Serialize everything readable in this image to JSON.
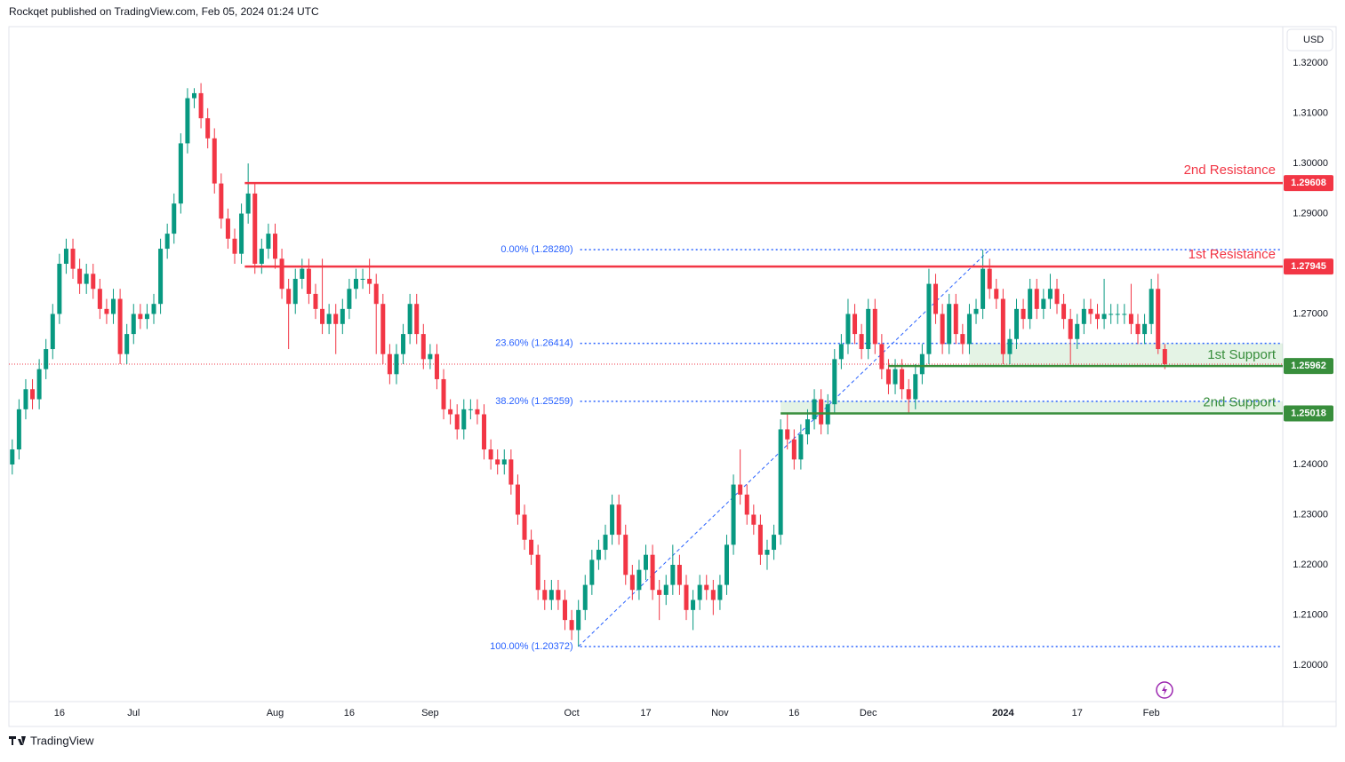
{
  "header": {
    "publisher": "Rockqet published on TradingView.com, Feb 05, 2024 01:24 UTC",
    "currency": "USD",
    "brand": "TradingView"
  },
  "chart_data": {
    "type": "candlestick",
    "up_color": "#089981",
    "down_color": "#f23645",
    "open": [
      1.24,
      1.243,
      1.251,
      1.255,
      1.253,
      1.259,
      1.263,
      1.27,
      1.28,
      1.283,
      1.279,
      1.276,
      1.278,
      1.275,
      1.271,
      1.27,
      1.273,
      1.262,
      1.266,
      1.27,
      1.269,
      1.27,
      1.272,
      1.283,
      1.286,
      1.292,
      1.304,
      1.313,
      1.314,
      1.309,
      1.305,
      1.296,
      1.289,
      1.285,
      1.282,
      1.29,
      1.294,
      1.28,
      1.283,
      1.286,
      1.281,
      1.275,
      1.272,
      1.277,
      1.279,
      1.274,
      1.271,
      1.268,
      1.27,
      1.268,
      1.271,
      1.275,
      1.277,
      1.277,
      1.276,
      1.272,
      1.262,
      1.258,
      1.262,
      1.266,
      1.272,
      1.266,
      1.261,
      1.262,
      1.257,
      1.251,
      1.25,
      1.247,
      1.251,
      1.251,
      1.25,
      1.243,
      1.241,
      1.24,
      1.241,
      1.236,
      1.23,
      1.225,
      1.222,
      1.215,
      1.213,
      1.215,
      1.213,
      1.209,
      1.207,
      1.211,
      1.216,
      1.221,
      1.223,
      1.226,
      1.232,
      1.226,
      1.218,
      1.215,
      1.219,
      1.222,
      1.215,
      1.214,
      1.216,
      1.22,
      1.216,
      1.211,
      1.213,
      1.216,
      1.215,
      1.213,
      1.216,
      1.224,
      1.236,
      1.234,
      1.23,
      1.228,
      1.222,
      1.223,
      1.226,
      1.247,
      1.245,
      1.241,
      1.246,
      1.249,
      1.253,
      1.248,
      1.252,
      1.261,
      1.264,
      1.27,
      1.266,
      1.263,
      1.271,
      1.264,
      1.259,
      1.256,
      1.259,
      1.255,
      1.253,
      1.258,
      1.262,
      1.276,
      1.27,
      1.264,
      1.272,
      1.266,
      1.264,
      1.27,
      1.271,
      1.279,
      1.275,
      1.273,
      1.262,
      1.265,
      1.271,
      1.269,
      1.275,
      1.271,
      1.273,
      1.275,
      1.272,
      1.269,
      1.265,
      1.268,
      1.271,
      1.27,
      1.269,
      1.27,
      1.27,
      1.27,
      1.27,
      1.268,
      1.266,
      1.268,
      1.275,
      1.263
    ],
    "high": [
      1.245,
      1.253,
      1.257,
      1.257,
      1.261,
      1.265,
      1.272,
      1.282,
      1.285,
      1.285,
      1.281,
      1.28,
      1.28,
      1.277,
      1.273,
      1.275,
      1.275,
      1.268,
      1.272,
      1.272,
      1.272,
      1.274,
      1.285,
      1.288,
      1.294,
      1.306,
      1.315,
      1.315,
      1.316,
      1.311,
      1.307,
      1.298,
      1.291,
      1.287,
      1.292,
      1.3,
      1.296,
      1.285,
      1.288,
      1.288,
      1.283,
      1.277,
      1.279,
      1.281,
      1.281,
      1.276,
      1.281,
      1.272,
      1.272,
      1.273,
      1.277,
      1.279,
      1.279,
      1.281,
      1.278,
      1.274,
      1.264,
      1.264,
      1.268,
      1.274,
      1.274,
      1.268,
      1.264,
      1.264,
      1.259,
      1.253,
      1.252,
      1.253,
      1.253,
      1.253,
      1.252,
      1.245,
      1.243,
      1.243,
      1.243,
      1.238,
      1.232,
      1.227,
      1.224,
      1.217,
      1.217,
      1.217,
      1.215,
      1.211,
      1.213,
      1.218,
      1.223,
      1.225,
      1.228,
      1.234,
      1.234,
      1.228,
      1.22,
      1.221,
      1.224,
      1.224,
      1.217,
      1.218,
      1.224,
      1.222,
      1.218,
      1.215,
      1.218,
      1.218,
      1.217,
      1.218,
      1.226,
      1.238,
      1.243,
      1.236,
      1.232,
      1.23,
      1.225,
      1.228,
      1.249,
      1.25,
      1.247,
      1.248,
      1.251,
      1.255,
      1.255,
      1.254,
      1.263,
      1.266,
      1.273,
      1.272,
      1.268,
      1.273,
      1.273,
      1.266,
      1.261,
      1.261,
      1.261,
      1.257,
      1.26,
      1.264,
      1.279,
      1.278,
      1.272,
      1.274,
      1.274,
      1.268,
      1.272,
      1.273,
      1.2828,
      1.281,
      1.277,
      1.275,
      1.267,
      1.273,
      1.273,
      1.277,
      1.277,
      1.275,
      1.278,
      1.277,
      1.274,
      1.271,
      1.27,
      1.273,
      1.273,
      1.272,
      1.277,
      1.272,
      1.272,
      1.272,
      1.276,
      1.27,
      1.27,
      1.277,
      1.278,
      1.264
    ],
    "low": [
      1.238,
      1.241,
      1.249,
      1.251,
      1.251,
      1.257,
      1.261,
      1.268,
      1.278,
      1.277,
      1.274,
      1.274,
      1.273,
      1.269,
      1.268,
      1.268,
      1.26,
      1.26,
      1.264,
      1.267,
      1.267,
      1.268,
      1.27,
      1.281,
      1.284,
      1.29,
      1.302,
      1.311,
      1.307,
      1.303,
      1.294,
      1.287,
      1.283,
      1.28,
      1.28,
      1.288,
      1.278,
      1.278,
      1.281,
      1.279,
      1.273,
      1.263,
      1.27,
      1.275,
      1.272,
      1.269,
      1.266,
      1.266,
      1.262,
      1.266,
      1.269,
      1.273,
      1.275,
      1.274,
      1.262,
      1.26,
      1.256,
      1.256,
      1.26,
      1.264,
      1.264,
      1.259,
      1.259,
      1.255,
      1.249,
      1.248,
      1.245,
      1.245,
      1.249,
      1.248,
      1.241,
      1.239,
      1.238,
      1.238,
      1.234,
      1.228,
      1.223,
      1.22,
      1.213,
      1.211,
      1.211,
      1.211,
      1.207,
      1.205,
      1.2037,
      1.209,
      1.214,
      1.219,
      1.221,
      1.224,
      1.224,
      1.216,
      1.213,
      1.213,
      1.217,
      1.213,
      1.209,
      1.212,
      1.214,
      1.214,
      1.209,
      1.207,
      1.211,
      1.213,
      1.21,
      1.211,
      1.214,
      1.222,
      1.232,
      1.228,
      1.226,
      1.22,
      1.219,
      1.221,
      1.224,
      1.243,
      1.239,
      1.239,
      1.244,
      1.247,
      1.246,
      1.246,
      1.25,
      1.259,
      1.262,
      1.264,
      1.261,
      1.261,
      1.262,
      1.257,
      1.254,
      1.254,
      1.253,
      1.25,
      1.251,
      1.256,
      1.26,
      1.268,
      1.262,
      1.262,
      1.264,
      1.262,
      1.262,
      1.268,
      1.269,
      1.273,
      1.271,
      1.26,
      1.26,
      1.263,
      1.267,
      1.267,
      1.269,
      1.269,
      1.271,
      1.27,
      1.267,
      1.26,
      1.263,
      1.266,
      1.268,
      1.267,
      1.267,
      1.268,
      1.268,
      1.268,
      1.266,
      1.264,
      1.264,
      1.266,
      1.262,
      1.259
    ],
    "close": [
      1.243,
      1.251,
      1.255,
      1.253,
      1.259,
      1.263,
      1.27,
      1.28,
      1.283,
      1.279,
      1.276,
      1.278,
      1.275,
      1.271,
      1.27,
      1.273,
      1.262,
      1.266,
      1.27,
      1.269,
      1.27,
      1.272,
      1.283,
      1.286,
      1.292,
      1.304,
      1.313,
      1.314,
      1.309,
      1.305,
      1.296,
      1.289,
      1.285,
      1.282,
      1.29,
      1.294,
      1.28,
      1.283,
      1.286,
      1.281,
      1.275,
      1.272,
      1.277,
      1.279,
      1.274,
      1.271,
      1.268,
      1.27,
      1.268,
      1.271,
      1.275,
      1.277,
      1.277,
      1.276,
      1.272,
      1.262,
      1.258,
      1.262,
      1.266,
      1.272,
      1.266,
      1.261,
      1.262,
      1.257,
      1.251,
      1.25,
      1.247,
      1.251,
      1.251,
      1.25,
      1.243,
      1.241,
      1.24,
      1.241,
      1.236,
      1.23,
      1.225,
      1.222,
      1.215,
      1.213,
      1.215,
      1.213,
      1.209,
      1.207,
      1.211,
      1.216,
      1.221,
      1.223,
      1.226,
      1.232,
      1.226,
      1.218,
      1.215,
      1.219,
      1.222,
      1.215,
      1.214,
      1.216,
      1.22,
      1.216,
      1.211,
      1.213,
      1.216,
      1.215,
      1.213,
      1.216,
      1.224,
      1.236,
      1.234,
      1.23,
      1.228,
      1.222,
      1.223,
      1.226,
      1.247,
      1.245,
      1.241,
      1.246,
      1.249,
      1.253,
      1.248,
      1.252,
      1.261,
      1.264,
      1.27,
      1.266,
      1.263,
      1.271,
      1.264,
      1.259,
      1.256,
      1.259,
      1.255,
      1.253,
      1.258,
      1.262,
      1.276,
      1.27,
      1.264,
      1.272,
      1.266,
      1.264,
      1.27,
      1.271,
      1.279,
      1.275,
      1.273,
      1.262,
      1.265,
      1.271,
      1.269,
      1.275,
      1.271,
      1.273,
      1.275,
      1.272,
      1.269,
      1.265,
      1.268,
      1.271,
      1.27,
      1.269,
      1.27,
      1.27,
      1.27,
      1.27,
      1.268,
      1.266,
      1.268,
      1.275,
      1.263,
      1.26
    ],
    "xlim": [
      -0.5,
      188.5
    ],
    "xticks": [
      {
        "value": 7,
        "label": "16"
      },
      {
        "value": 18,
        "label": "Jul"
      },
      {
        "value": 39,
        "label": "Aug"
      },
      {
        "value": 50,
        "label": "16"
      },
      {
        "value": 62,
        "label": "Sep"
      },
      {
        "value": 83,
        "label": "Oct"
      },
      {
        "value": 94,
        "label": "17"
      },
      {
        "value": 105,
        "label": "Nov"
      },
      {
        "value": 116,
        "label": "16"
      },
      {
        "value": 127,
        "label": "Dec"
      },
      {
        "value": 147,
        "label": "2024"
      },
      {
        "value": 158,
        "label": "17"
      },
      {
        "value": 169,
        "label": "Feb"
      }
    ],
    "ylim": [
      1.19274,
      1.32726
    ],
    "yticks": [
      {
        "value": 1.2,
        "label": "1.20000"
      },
      {
        "value": 1.21,
        "label": "1.21000"
      },
      {
        "value": 1.22,
        "label": "1.22000"
      },
      {
        "value": 1.23,
        "label": "1.23000"
      },
      {
        "value": 1.24,
        "label": "1.24000"
      },
      {
        "value": 1.25,
        "label": "1.25000"
      },
      {
        "value": 1.26,
        "label": "1.26000"
      },
      {
        "value": 1.27,
        "label": "1.27000"
      },
      {
        "value": 1.28,
        "label": "1.28000"
      },
      {
        "value": 1.29,
        "label": "1.29000"
      },
      {
        "value": 1.3,
        "label": "1.30000"
      },
      {
        "value": 1.31,
        "label": "1.31000"
      },
      {
        "value": 1.32,
        "label": "1.32000"
      }
    ],
    "grid": false,
    "levels": [
      {
        "name": "2nd Resistance",
        "value": 1.29608,
        "color": "#f23645"
      },
      {
        "name": "1st Resistance",
        "value": 1.27945,
        "color": "#f23645"
      },
      {
        "name": "1st Support",
        "value": 1.25962,
        "color": "#388e3c"
      },
      {
        "name": "2nd Support",
        "value": 1.25018,
        "color": "#388e3c"
      }
    ],
    "fibonacci": [
      {
        "label": "0.00% (1.28280)",
        "value": 1.2828
      },
      {
        "label": "23.60% (1.26414)",
        "value": 1.26414
      },
      {
        "label": "38.20% (1.25259)",
        "value": 1.25259
      },
      {
        "label": "100.00% (1.20372)",
        "value": 1.20372
      }
    ],
    "fib_color": "#2962ff"
  }
}
